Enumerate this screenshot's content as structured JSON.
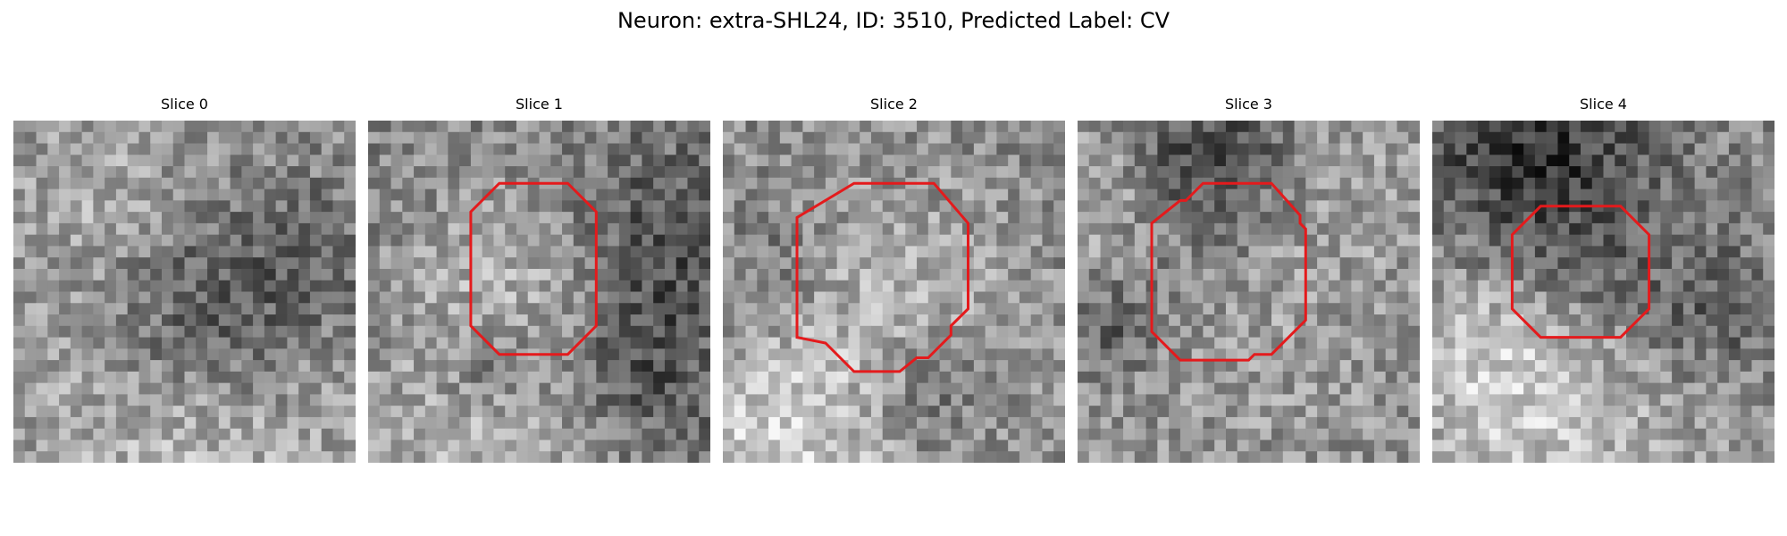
{
  "figure": {
    "title": "Neuron: extra-SHL24, ID: 3510, Predicted Label: CV",
    "contour_color": "#e41a1c",
    "colormap": "gray",
    "panels": [
      {
        "title": "Slice 0",
        "seed": 11,
        "has_contour": false
      },
      {
        "title": "Slice 1",
        "seed": 23,
        "has_contour": true
      },
      {
        "title": "Slice 2",
        "seed": 37,
        "has_contour": true
      },
      {
        "title": "Slice 3",
        "seed": 51,
        "has_contour": true
      },
      {
        "title": "Slice 4",
        "seed": 67,
        "has_contour": true
      }
    ]
  }
}
